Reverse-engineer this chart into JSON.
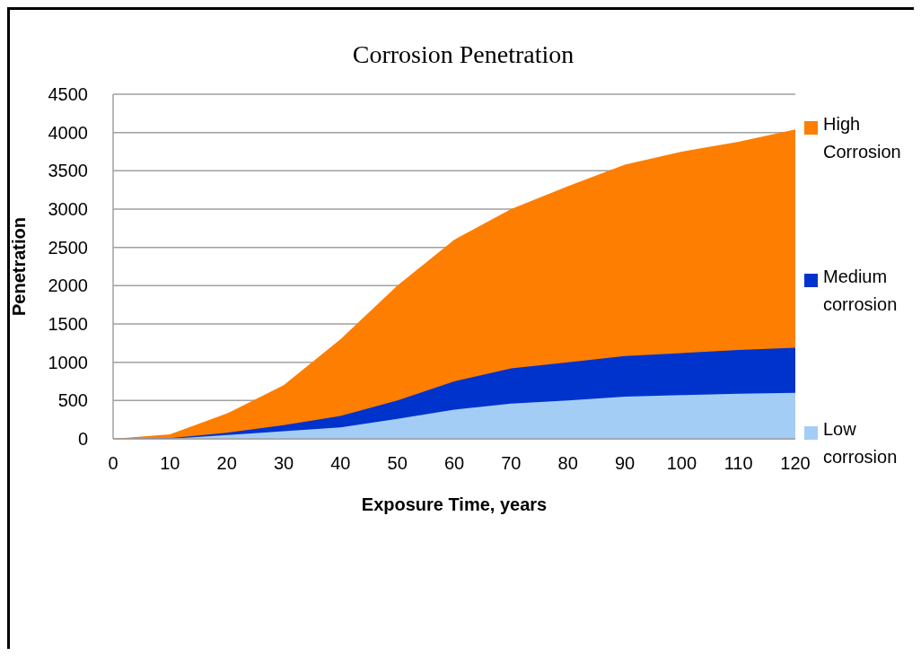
{
  "chart_data": {
    "type": "area",
    "title": "Corrosion Penetration",
    "xlabel": "Exposure Time, years",
    "ylabel": "Penetration",
    "x": [
      0,
      10,
      20,
      30,
      40,
      50,
      60,
      70,
      80,
      90,
      100,
      110,
      120
    ],
    "series": [
      {
        "name": "High Corrosion",
        "color": "#fd7e00",
        "values": [
          0,
          60,
          330,
          700,
          1300,
          2000,
          2600,
          3000,
          3300,
          3580,
          3750,
          3880,
          4040
        ]
      },
      {
        "name": "Medium corrosion",
        "color": "#0033cc",
        "values": [
          0,
          10,
          80,
          180,
          300,
          500,
          750,
          920,
          1000,
          1080,
          1120,
          1160,
          1190
        ]
      },
      {
        "name": "Low corrosion",
        "color": "#a4cdf5",
        "values": [
          0,
          0,
          50,
          100,
          150,
          260,
          380,
          460,
          500,
          550,
          570,
          590,
          600
        ]
      }
    ],
    "xlim": [
      0,
      120
    ],
    "xticks": [
      0,
      10,
      20,
      30,
      40,
      50,
      60,
      70,
      80,
      90,
      100,
      110,
      120
    ],
    "ylim": [
      0,
      4500
    ],
    "yticks": [
      0,
      500,
      1000,
      1500,
      2000,
      2500,
      3000,
      3500,
      4000,
      4500
    ],
    "grid": "y",
    "legend": "right"
  }
}
